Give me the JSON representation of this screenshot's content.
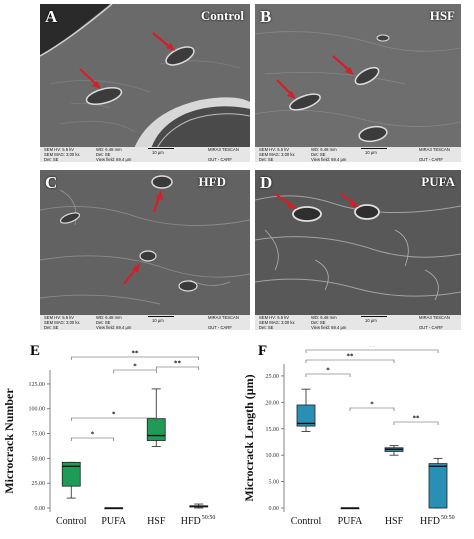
{
  "panels": [
    {
      "letter": "A",
      "title": "Control"
    },
    {
      "letter": "B",
      "title": "HSF"
    },
    {
      "letter": "C",
      "title": "HFD"
    },
    {
      "letter": "D",
      "title": "PUFA"
    }
  ],
  "sem_info": {
    "hv": "SEM HV: 5.5 kV",
    "mag": "SEM MAG: 3.00 kx",
    "det": "Det: SE",
    "wd": "WD: 6.48 mm",
    "det2": "Det: SE",
    "view": "View field: 69.4 μm",
    "scale": "10 μm",
    "brand": "MIRA3 TESCAN",
    "org": "GUT - CARF"
  },
  "colors": {
    "green_box": "#1e9c57",
    "blue_box": "#2a8fb5",
    "arrow": "#d41f26",
    "sem_gray": "#5c5c5c"
  },
  "chart_data": [
    {
      "type": "box",
      "panel_label": "E",
      "ylabel": "Microcrack Number",
      "categories": [
        "Control",
        "PUFA",
        "HSF",
        "HFD"
      ],
      "category_superscript": {
        "HFD": "50:50"
      },
      "yticks": [
        "0.00",
        "25.00",
        "50.00",
        "75.00",
        "100.00",
        "125.00"
      ],
      "ylim": [
        0,
        135
      ],
      "boxes": [
        {
          "min": 10,
          "q1": 22,
          "median": 42,
          "q3": 46,
          "max": 46
        },
        {
          "min": 0,
          "q1": 0,
          "median": 0,
          "q3": 0,
          "max": 0
        },
        {
          "min": 62,
          "q1": 68,
          "median": 73,
          "q3": 90,
          "max": 120
        },
        {
          "min": 0,
          "q1": 1,
          "median": 2,
          "q3": 2,
          "max": 4
        }
      ],
      "color": "#1e9c57",
      "significance": [
        {
          "from": 0,
          "to": 1,
          "label": "*"
        },
        {
          "from": 0,
          "to": 2,
          "label": "*"
        },
        {
          "from": 1,
          "to": 2,
          "label": "*"
        },
        {
          "from": 0,
          "to": 3,
          "label": "**"
        },
        {
          "from": 2,
          "to": 3,
          "label": "**"
        }
      ]
    },
    {
      "type": "box",
      "panel_label": "F",
      "ylabel": "Microcrack Length (μm)",
      "categories": [
        "Control",
        "PUFA",
        "HSF",
        "HFD"
      ],
      "category_superscript": {
        "HFD": "50:50"
      },
      "yticks": [
        "0.00",
        "5.00",
        "10.00",
        "15.00",
        "20.00",
        "25.00"
      ],
      "ylim": [
        0,
        26.5
      ],
      "boxes": [
        {
          "min": 14.5,
          "q1": 15.5,
          "median": 16,
          "q3": 19.5,
          "max": 22.5
        },
        {
          "min": 0,
          "q1": 0,
          "median": 0,
          "q3": 0,
          "max": 0
        },
        {
          "min": 10,
          "q1": 10.7,
          "median": 11.1,
          "q3": 11.4,
          "max": 11.8
        },
        {
          "min": 0,
          "q1": 0,
          "median": 7.9,
          "q3": 8.4,
          "max": 9.4
        }
      ],
      "color": "#2a8fb5",
      "significance": [
        {
          "from": 0,
          "to": 1,
          "label": "*"
        },
        {
          "from": 0,
          "to": 2,
          "label": "**"
        },
        {
          "from": 1,
          "to": 2,
          "label": "*"
        },
        {
          "from": 0,
          "to": 3,
          "label": "**"
        },
        {
          "from": 2,
          "to": 3,
          "label": "**"
        }
      ]
    }
  ]
}
